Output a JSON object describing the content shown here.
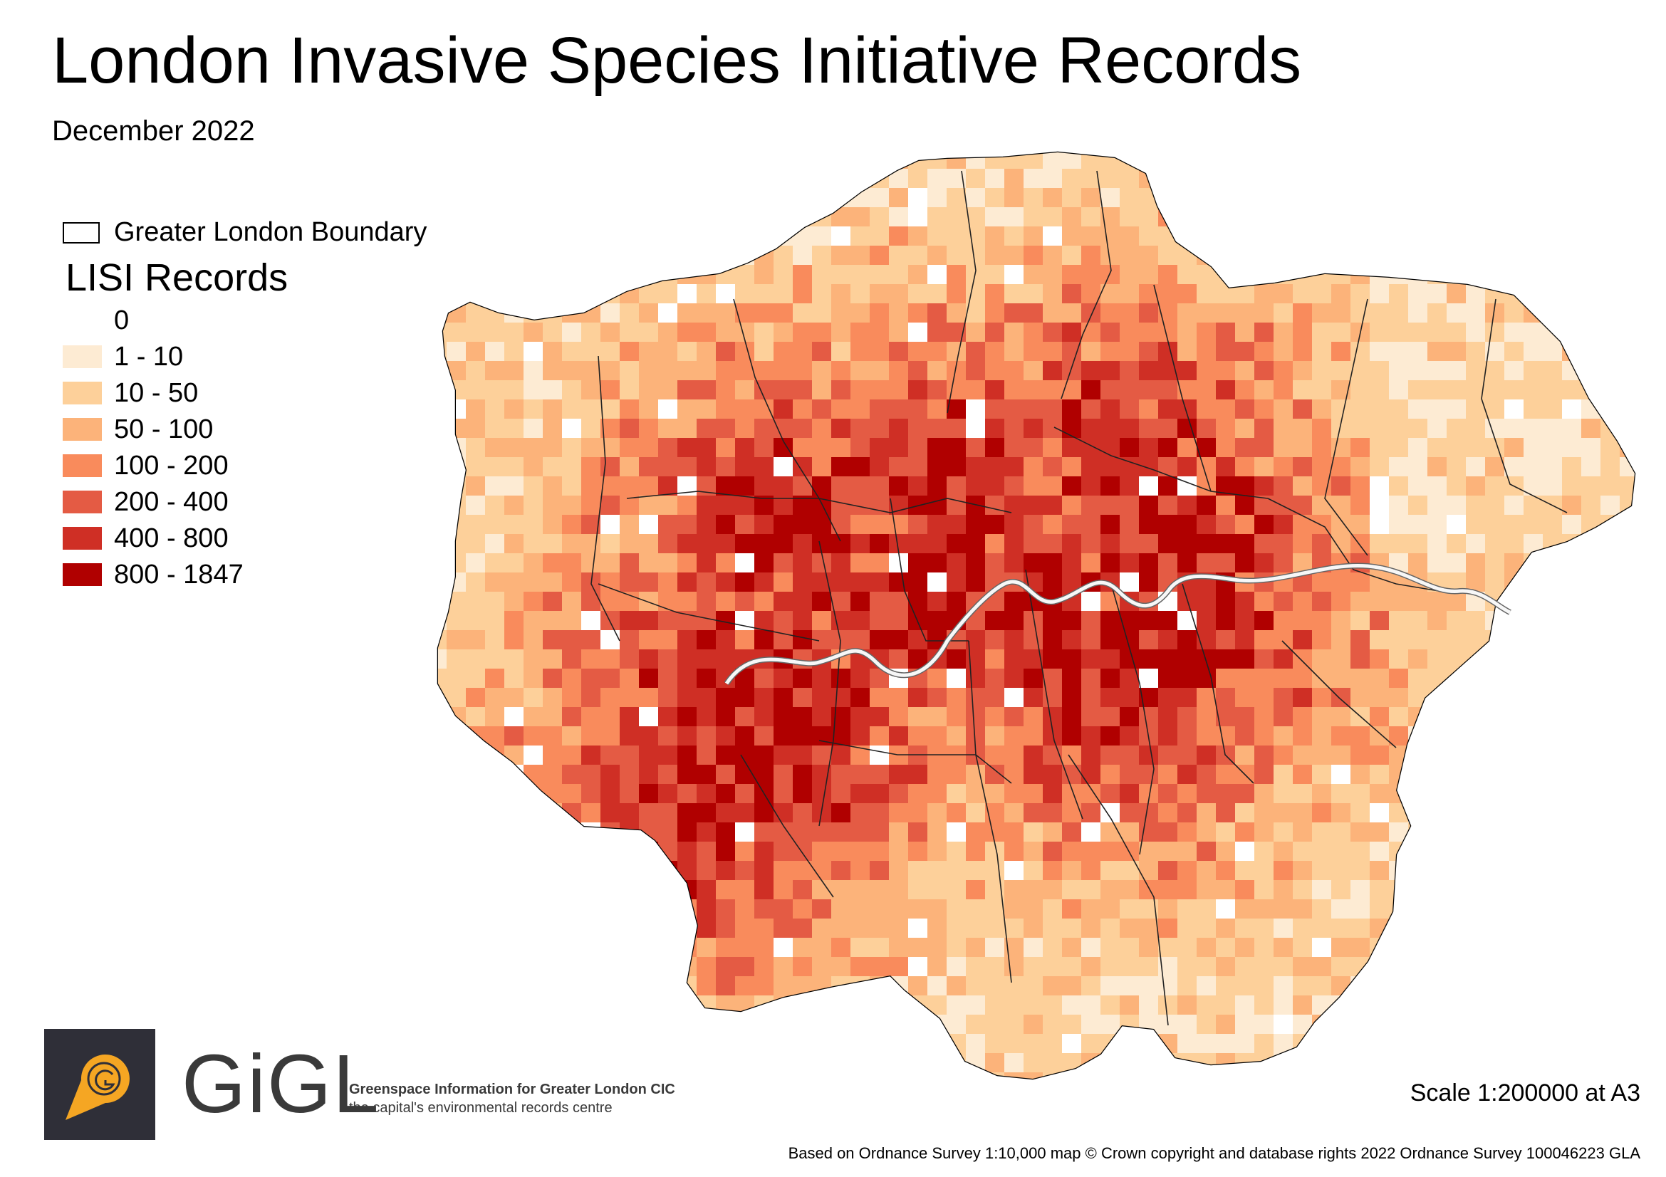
{
  "title": "London Invasive Species Initiative Records",
  "subtitle": "December 2022",
  "legend": {
    "boundary_label": "Greater London Boundary",
    "title": "LISI Records",
    "classes": [
      {
        "label": "0",
        "color": "#ffffff"
      },
      {
        "label": "1 - 10",
        "color": "#fdebd3"
      },
      {
        "label": "10 - 50",
        "color": "#fdd09a"
      },
      {
        "label": "50 - 100",
        "color": "#fcb37a"
      },
      {
        "label": "100 - 200",
        "color": "#f98b5c"
      },
      {
        "label": "200 - 400",
        "color": "#e45b44"
      },
      {
        "label": "400 - 800",
        "color": "#cf2f25"
      },
      {
        "label": "800 - 1847",
        "color": "#b00000"
      }
    ]
  },
  "logo": {
    "wordmark": "GiGL",
    "org_name": "Greenspace Information for Greater London CIC",
    "tagline": "the capital's environmental records centre",
    "icon": "map-pin-g-icon",
    "accent_color": "#f5a623"
  },
  "scale": "Scale 1:200000 at A3",
  "attribution": "Based on Ordnance Survey 1:10,000 map © Crown copyright and database rights 2022 Ordnance Survey 100046223 GLA"
}
